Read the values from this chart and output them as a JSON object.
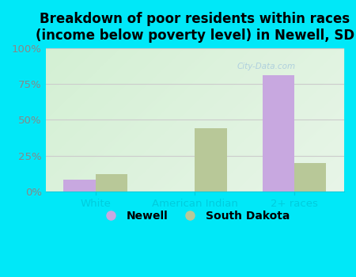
{
  "title": "Breakdown of poor residents within races\n(income below poverty level) in Newell, SD",
  "categories": [
    "White",
    "American Indian",
    "2+ races"
  ],
  "newell_values": [
    0.08,
    0.0,
    0.81
  ],
  "sd_values": [
    0.12,
    0.44,
    0.2
  ],
  "newell_color": "#c8a8e0",
  "sd_color": "#b8c898",
  "background_outer": "#00e8f8",
  "background_inner_topleft": "#d8eedd",
  "background_inner_botright": "#f4faf4",
  "yticks": [
    0.0,
    0.25,
    0.5,
    0.75,
    1.0
  ],
  "ytick_labels": [
    "0%",
    "25%",
    "50%",
    "75%",
    "100%"
  ],
  "bar_width": 0.32,
  "legend_labels": [
    "Newell",
    "South Dakota"
  ],
  "title_fontsize": 12,
  "tick_fontsize": 9.5,
  "legend_fontsize": 10,
  "xtick_color": "#00ccdd",
  "ytick_color": "#888888",
  "grid_color": "#cccccc",
  "watermark": "City-Data.com"
}
